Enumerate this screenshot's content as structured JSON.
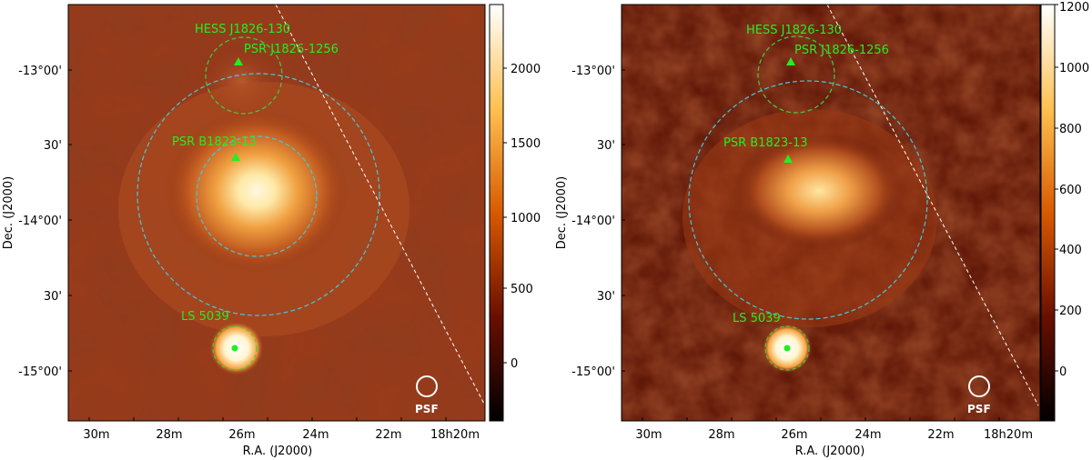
{
  "panels": [
    {
      "id": "left",
      "xlabel": "R.A. (J2000)",
      "ylabel": "Dec. (J2000)",
      "x_ticks": [
        "30m",
        "28m",
        "26m",
        "24m",
        "22m",
        "18h20m"
      ],
      "y_ticks": [
        "-13°00'",
        "30'",
        "-14°00'",
        "30'",
        "-15°00'"
      ],
      "colorbar_ticks": [
        "2000",
        "1500",
        "1000",
        "500",
        "0"
      ],
      "labels": {
        "hess": "HESS J1826-130",
        "psr1": "PSR J1826-1256",
        "psr2": "PSR B1823-13",
        "ls": "LS 5039",
        "psf": "PSF"
      }
    },
    {
      "id": "right",
      "xlabel": "R.A. (J2000)",
      "ylabel": "Dec. (J2000)",
      "x_ticks": [
        "30m",
        "28m",
        "26m",
        "24m",
        "22m",
        "18h20m"
      ],
      "y_ticks": [
        "-13°00'",
        "30'",
        "-14°00'",
        "30'",
        "-15°00'"
      ],
      "colorbar_ticks": [
        "1200",
        "1000",
        "800",
        "600",
        "400",
        "200",
        "0"
      ],
      "labels": {
        "hess": "HESS J1826-130",
        "psr1": "PSR J1826-1256",
        "psr2": "PSR B1823-13",
        "ls": "LS 5039",
        "psf": "PSF"
      }
    }
  ],
  "colors": {
    "label_green": "#22ee22",
    "region_cyan": "#44c8e0",
    "region_green": "#44cc44",
    "colormap": "afmhot"
  }
}
